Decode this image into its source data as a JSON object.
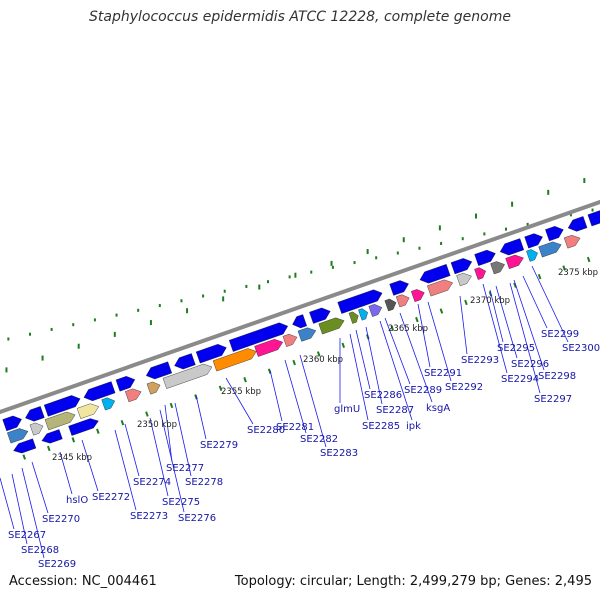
{
  "title": "Staphylococcus epidermidis ATCC 12228, complete genome",
  "footer": {
    "accession": "Accession: NC_004461",
    "topology": "Topology: circular; Length: 2,499,279 bp; Genes: 2,495"
  },
  "colors": {
    "backbone": "#8a8a8a",
    "gene_arrow": "#0000ee",
    "label": "#1515a8",
    "tick": "#1e7d1e",
    "leader": "#1a1aee"
  },
  "kbp_labels": [
    "2345 kbp",
    "2350 kbp",
    "2355 kbp",
    "2360 kbp",
    "2365 kbp",
    "2370 kbp",
    "2375 kbp"
  ],
  "gene_labels": [
    "SE2267",
    "SE2268",
    "SE2269",
    "SE2270",
    "hslO",
    "SE2272",
    "SE2273",
    "SE2274",
    "SE2275",
    "SE2276",
    "SE2277",
    "SE2278",
    "SE2279",
    "SE2280",
    "SE2281",
    "SE2282",
    "SE2283",
    "glmU",
    "SE2285",
    "SE2286",
    "SE2287",
    "ipk",
    "SE2289",
    "ksgA",
    "SE2291",
    "SE2292",
    "SE2293",
    "SE2294",
    "SE2295",
    "SE2296",
    "SE2297",
    "SE2298",
    "SE2299",
    "SE2300"
  ]
}
